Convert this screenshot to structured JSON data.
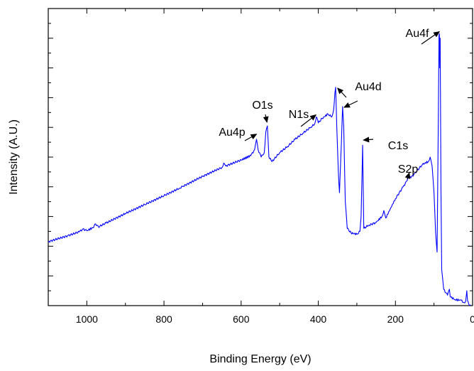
{
  "chart_data": {
    "type": "line",
    "title": "",
    "xlabel": "Binding Energy (eV)",
    "ylabel": "Intensity (A.U.)",
    "xlim": [
      1100,
      0
    ],
    "ylim": [
      0,
      100
    ],
    "x_reversed": true,
    "grid": false,
    "legend": "none",
    "y_tick_labels_shown": false,
    "x_ticks": [
      1000,
      800,
      600,
      400,
      200,
      0
    ],
    "x_tick_labels": [
      "1000",
      "800",
      "600",
      "400",
      "200",
      "0"
    ],
    "series": [
      {
        "name": "",
        "color": "#0000ff",
        "points": [
          [
            1100,
            21.5
          ],
          [
            1050,
            23.5
          ],
          [
            1020,
            24.8
          ],
          [
            1010,
            25.8
          ],
          [
            1000,
            25.2
          ],
          [
            985,
            26.2
          ],
          [
            977,
            27.5
          ],
          [
            970,
            26.5
          ],
          [
            950,
            27.8
          ],
          [
            900,
            31.0
          ],
          [
            850,
            34.0
          ],
          [
            800,
            37.0
          ],
          [
            760,
            39.5
          ],
          [
            750,
            40.2
          ],
          [
            700,
            43.5
          ],
          [
            650,
            46.5
          ],
          [
            645,
            48.0
          ],
          [
            640,
            47.0
          ],
          [
            600,
            49.0
          ],
          [
            575,
            50.5
          ],
          [
            565,
            52.5
          ],
          [
            560,
            56.0
          ],
          [
            556,
            52.5
          ],
          [
            548,
            50.0
          ],
          [
            540,
            51.5
          ],
          [
            536,
            58.5
          ],
          [
            532,
            60.5
          ],
          [
            528,
            50.0
          ],
          [
            520,
            48.5
          ],
          [
            500,
            51.5
          ],
          [
            480,
            53.5
          ],
          [
            460,
            56.0
          ],
          [
            440,
            58.0
          ],
          [
            420,
            60.0
          ],
          [
            410,
            61.0
          ],
          [
            405,
            63.5
          ],
          [
            400,
            61.5
          ],
          [
            390,
            63.0
          ],
          [
            375,
            64.5
          ],
          [
            365,
            63.5
          ],
          [
            360,
            66.0
          ],
          [
            357,
            71.5
          ],
          [
            355,
            73.5
          ],
          [
            352,
            60.0
          ],
          [
            348,
            45.0
          ],
          [
            345,
            38.0
          ],
          [
            340,
            55.0
          ],
          [
            337,
            67.0
          ],
          [
            334,
            60.0
          ],
          [
            330,
            35.0
          ],
          [
            325,
            26.0
          ],
          [
            315,
            24.5
          ],
          [
            300,
            24.0
          ],
          [
            292,
            25.0
          ],
          [
            289,
            30.0
          ],
          [
            285,
            54.0
          ],
          [
            282,
            26.0
          ],
          [
            270,
            27.0
          ],
          [
            250,
            28.0
          ],
          [
            235,
            30.0
          ],
          [
            230,
            32.0
          ],
          [
            225,
            29.5
          ],
          [
            200,
            36.0
          ],
          [
            180,
            40.0
          ],
          [
            170,
            42.0
          ],
          [
            165,
            43.5
          ],
          [
            160,
            43.0
          ],
          [
            150,
            44.5
          ],
          [
            130,
            47.5
          ],
          [
            115,
            48.5
          ],
          [
            110,
            50.0
          ],
          [
            105,
            47.0
          ],
          [
            100,
            38.0
          ],
          [
            96,
            25.0
          ],
          [
            92,
            18.0
          ],
          [
            89,
            60.0
          ],
          [
            87,
            91.0
          ],
          [
            86,
            91.5
          ],
          [
            85,
            80.0
          ],
          [
            84,
            90.0
          ],
          [
            82,
            40.0
          ],
          [
            80,
            12.0
          ],
          [
            75,
            5.5
          ],
          [
            65,
            3.5
          ],
          [
            60,
            5.5
          ],
          [
            58,
            3.0
          ],
          [
            45,
            2.0
          ],
          [
            30,
            1.8
          ],
          [
            22,
            1.0
          ],
          [
            18,
            1.5
          ],
          [
            15,
            5.0
          ],
          [
            13,
            1.5
          ],
          [
            10,
            0.5
          ],
          [
            5,
            0.3
          ]
        ]
      }
    ],
    "annotations": [
      {
        "text": "Au4f",
        "arrows": [
          [
            86,
            91.5
          ]
        ]
      },
      {
        "text": "Au4d",
        "arrows": [
          [
            350,
            72.5
          ],
          [
            333,
            66.0
          ]
        ]
      },
      {
        "text": "O1s",
        "arrows": [
          [
            533,
            61.0
          ]
        ]
      },
      {
        "text": "N1s",
        "arrows": [
          [
            406,
            63.5
          ]
        ]
      },
      {
        "text": "Au4p",
        "arrows": [
          [
            560,
            57.0
          ]
        ]
      },
      {
        "text": "C1s",
        "arrows": [
          [
            283,
            55.0
          ]
        ]
      },
      {
        "text": "S2p",
        "arrows": [
          [
            164,
            44.0
          ]
        ]
      }
    ]
  }
}
